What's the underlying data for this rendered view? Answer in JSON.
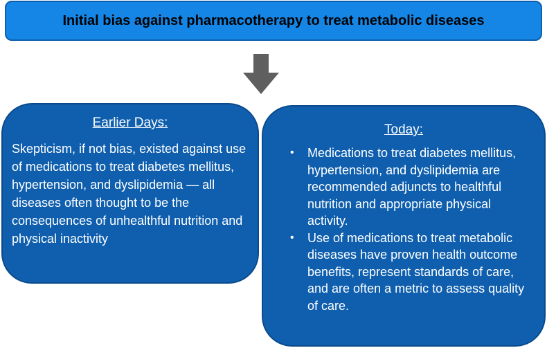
{
  "title": "Initial bias against pharmacotherapy to treat metabolic diseases",
  "arrow_icon": "down-arrow-icon",
  "earlier": {
    "heading": "Earlier Days:",
    "text": "Skepticism, if not bias, existed against use of medications to treat diabetes mellitus, hypertension, and dyslipidemia — all diseases often thought to be the consequences of unhealthful nutrition and physical inactivity"
  },
  "today": {
    "heading": "Today:",
    "bullet_marker": "•",
    "items": [
      {
        "text": "Medications to treat diabetes mellitus, hypertension, and dyslipidemia are recommended adjuncts to healthful nutrition and appropriate physical activity."
      },
      {
        "text": "Use of medications to treat metabolic diseases have proven health outcome benefits, represent standards of care, and are often a metric to assess quality of care."
      }
    ]
  },
  "colors": {
    "title_fill": "#1586e6",
    "panel_fill": "#0f5fae",
    "arrow": "#5f5f5f"
  }
}
